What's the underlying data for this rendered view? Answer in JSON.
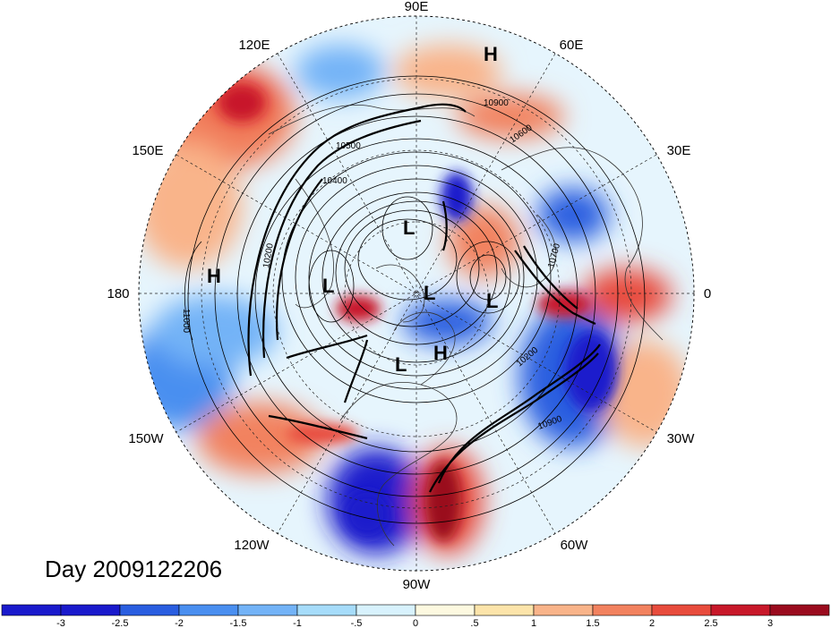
{
  "title": "Day 2009122206",
  "longitude_labels": [
    "90E",
    "60E",
    "30E",
    "0",
    "30W",
    "60W",
    "90W",
    "120W",
    "150W",
    "180",
    "150E",
    "120E"
  ],
  "pressure_markers": [
    {
      "id": "h1",
      "text": "H"
    },
    {
      "id": "h2",
      "text": "H"
    },
    {
      "id": "h3",
      "text": "H"
    },
    {
      "id": "l1",
      "text": "L"
    },
    {
      "id": "l2",
      "text": "L"
    },
    {
      "id": "l3",
      "text": "L"
    },
    {
      "id": "l4",
      "text": "L"
    },
    {
      "id": "l5",
      "text": "L"
    }
  ],
  "contour_labels": [
    "10900",
    "10600",
    "10500",
    "10400",
    "10700",
    "10200",
    "10900",
    "11000",
    "10200"
  ],
  "colorbar": {
    "colors": [
      "#1a1acc",
      "#2a5ee0",
      "#4a8ff0",
      "#73b3f7",
      "#a6dcfa",
      "#d8f2fd",
      "#fdf9e0",
      "#fce4aa",
      "#f9b48a",
      "#f2825f",
      "#e84c3d",
      "#c8182a",
      "#9a0b1e"
    ],
    "labels": [
      "-3",
      "-2.5",
      "-2",
      "-1.5",
      "-1",
      "-.5",
      "0",
      ".5",
      "1",
      "1.5",
      "2",
      "2.5",
      "3"
    ]
  }
}
